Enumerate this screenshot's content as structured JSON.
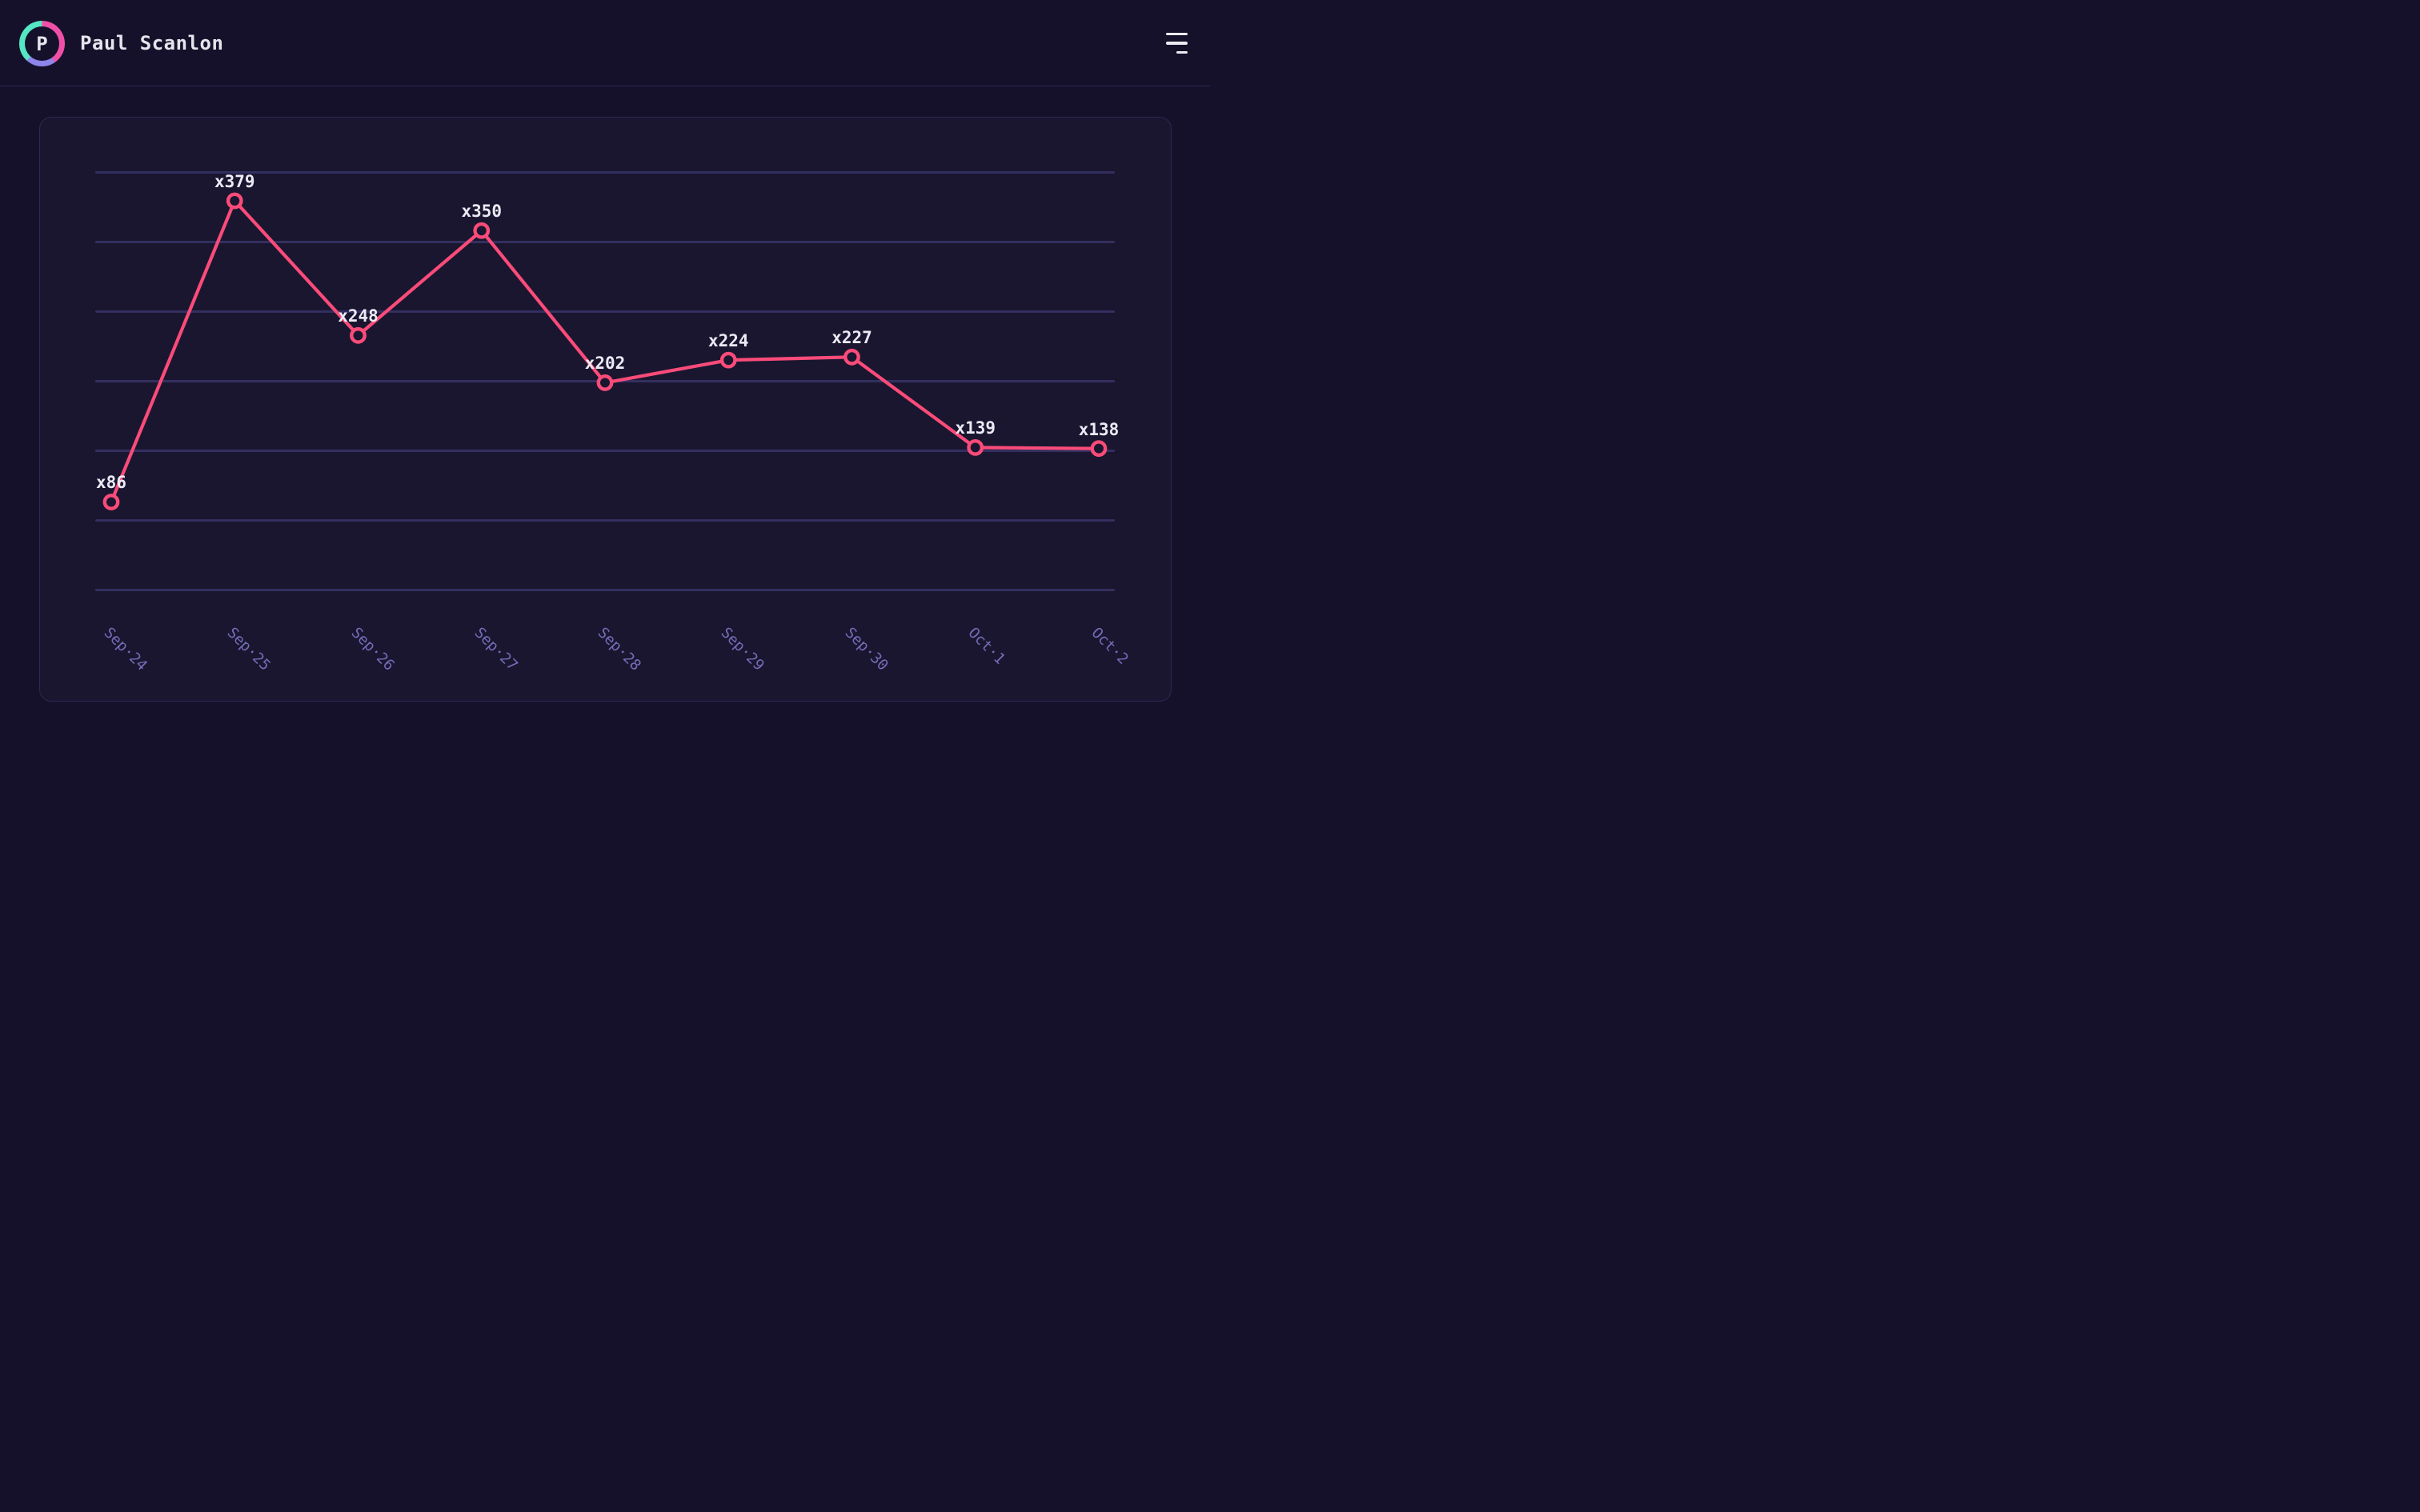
{
  "header": {
    "avatar_initial": "P",
    "user_name": "Paul Scanlon"
  },
  "menu": {
    "icon": "hamburger-icon"
  },
  "theme": {
    "page_bg": "#15112a",
    "card_bg": "#1a1630",
    "card_border": "#2c2852",
    "header_divider": "#2a2650",
    "gridline": "#332f5f",
    "line_pink": "#fa4b79",
    "marker_fill": "#1a1630",
    "point_label_text": "#eceaf4",
    "axis_label_text": "#746db8",
    "header_text": "#e6e5ee",
    "avatar_ring_pink": "#f04fa8",
    "avatar_ring_purple": "#8d85ea",
    "avatar_ring_teal": "#55e6c3"
  },
  "chart_data": {
    "type": "line",
    "categories": [
      "Sep·24",
      "Sep·25",
      "Sep·26",
      "Sep·27",
      "Sep·28",
      "Sep·29",
      "Sep·30",
      "Oct·1",
      "Oct·2"
    ],
    "values": [
      86,
      379,
      248,
      350,
      202,
      224,
      227,
      139,
      138
    ],
    "point_labels": [
      "x86",
      "x379",
      "x248",
      "x350",
      "x202",
      "x224",
      "x227",
      "x139",
      "x138"
    ],
    "title": "",
    "xlabel": "",
    "ylabel": "",
    "ylim": [
      0,
      410
    ],
    "grid": "horizontal",
    "gridline_count": 7,
    "legend": "none"
  }
}
